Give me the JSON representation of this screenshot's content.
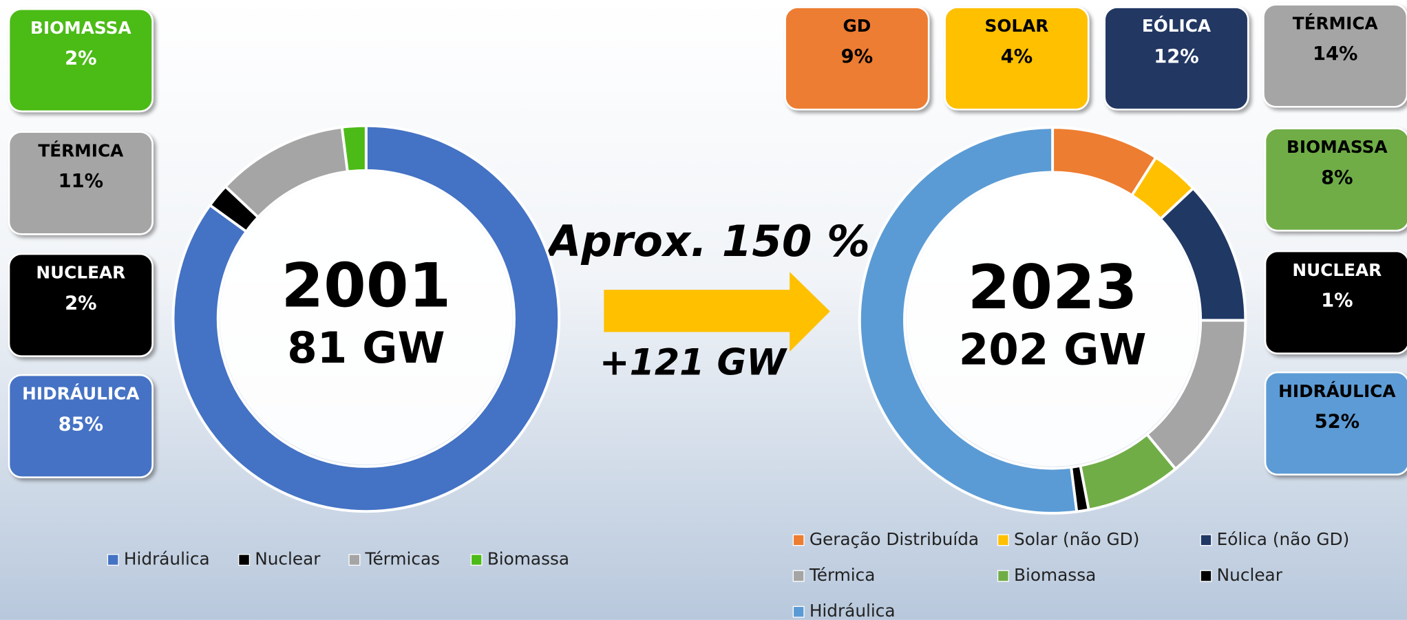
{
  "chart_data": [
    {
      "type": "donut",
      "center_title": "2001",
      "center_subtitle": "81 GW",
      "categories": [
        "Hidráulica",
        "Nuclear",
        "Térmicas",
        "Biomassa"
      ],
      "callout_labels": [
        "HIDRÁULICA",
        "NUCLEAR",
        "TÉRMICA",
        "BIOMASSA"
      ],
      "values": [
        85,
        2,
        11,
        2
      ],
      "value_labels": [
        "85%",
        "2%",
        "11%",
        "2%"
      ],
      "colors": [
        "#4472c4",
        "#000000",
        "#a5a5a5",
        "#4cbb17"
      ]
    },
    {
      "type": "donut",
      "center_title": "2023",
      "center_subtitle": "202 GW",
      "categories": [
        "Geração Distribuída",
        "Solar (não GD)",
        "Eólica (não GD)",
        "Térmica",
        "Biomassa",
        "Nuclear",
        "Hidráulica"
      ],
      "callout_labels": [
        "GD",
        "SOLAR",
        "EÓLICA",
        "TÉRMICA",
        "BIOMASSA",
        "NUCLEAR",
        "HIDRÁULICA"
      ],
      "values": [
        9,
        4,
        12,
        14,
        8,
        1,
        52
      ],
      "value_labels": [
        "9%",
        "4%",
        "12%",
        "14%",
        "8%",
        "1%",
        "52%"
      ],
      "colors": [
        "#ed7d31",
        "#ffc000",
        "#203864",
        "#a5a5a5",
        "#70ad47",
        "#000000",
        "#5b9bd5"
      ]
    }
  ],
  "annotations": [
    "Aprox. 150 %",
    "+121 GW"
  ]
}
